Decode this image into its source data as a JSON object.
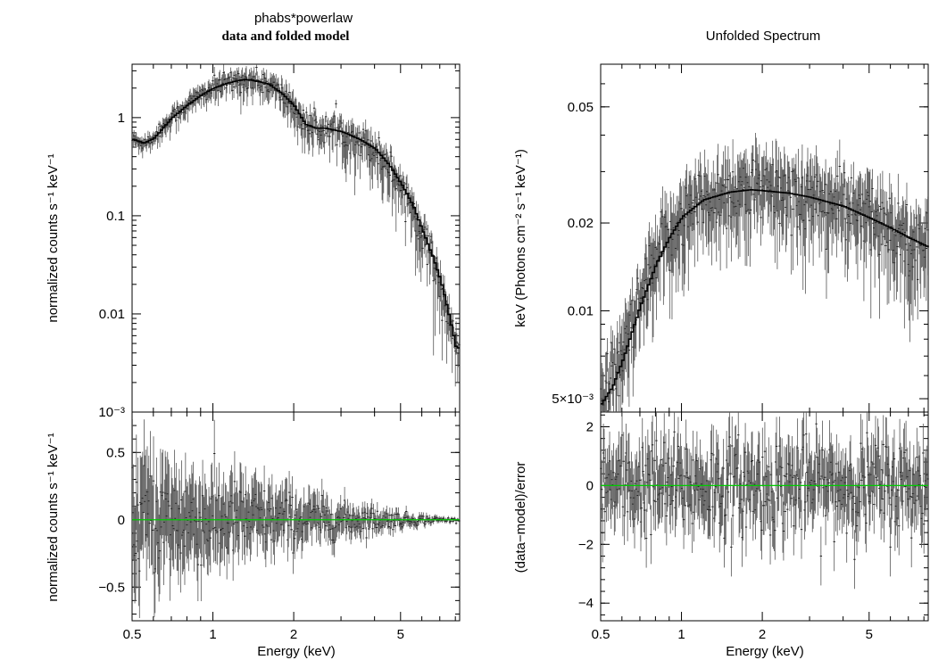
{
  "left": {
    "title_line1": "phabs*powerlaw",
    "title_line2": "data and folded model",
    "top_ylabel": "normalized counts s⁻¹ keV⁻¹",
    "bottom_ylabel": "normalized counts s⁻¹ keV⁻¹",
    "xlabel": "Energy (keV)"
  },
  "right": {
    "title": "Unfolded Spectrum",
    "top_ylabel": "keV (Photons cm⁻² s⁻¹ keV⁻¹)",
    "bottom_ylabel": "(data−model)/error",
    "xlabel": "Energy (keV)"
  },
  "colors": {
    "axis": "#000000",
    "data": "#555555",
    "model": "#000000",
    "zero_line": "#00cc00"
  },
  "chart_data": [
    {
      "type": "line",
      "panel": "left-top",
      "xscale": "log",
      "yscale": "log",
      "xlim": [
        0.5,
        8.3
      ],
      "ylim": [
        0.001,
        3.5
      ],
      "x_ticks": [
        0.5,
        1,
        2,
        5
      ],
      "x_tick_labels": [
        "0.5",
        "1",
        "2",
        "5"
      ],
      "y_ticks": [
        0.001,
        0.01,
        0.1,
        1
      ],
      "y_tick_labels": [
        "10⁻³",
        "0.01",
        "0.1",
        "1"
      ],
      "series": [
        {
          "x": [
            0.5,
            0.55,
            0.6,
            0.65,
            0.7,
            0.8,
            0.9,
            1.0,
            1.1,
            1.2,
            1.3,
            1.4,
            1.6,
            1.8,
            2.0,
            2.2,
            2.4,
            2.6,
            3.0,
            3.5,
            4.0,
            4.5,
            5.0,
            5.5,
            6.0,
            6.5,
            7.0,
            7.5,
            8.0,
            8.3
          ],
          "y": [
            0.6,
            0.55,
            0.62,
            0.8,
            1.0,
            1.35,
            1.7,
            2.0,
            2.2,
            2.35,
            2.45,
            2.4,
            2.2,
            1.75,
            1.3,
            0.85,
            0.78,
            0.78,
            0.72,
            0.6,
            0.48,
            0.33,
            0.21,
            0.13,
            0.07,
            0.04,
            0.022,
            0.01,
            0.0045,
            0.0045
          ]
        }
      ]
    },
    {
      "type": "scatter",
      "panel": "left-bottom",
      "xscale": "log",
      "yscale": "linear",
      "xlim": [
        0.5,
        8.3
      ],
      "ylim": [
        -0.75,
        0.8
      ],
      "x_ticks": [
        0.5,
        1,
        2,
        5
      ],
      "x_tick_labels": [
        "0.5",
        "1",
        "2",
        "5"
      ],
      "y_ticks": [
        -0.5,
        0,
        0.5
      ],
      "y_tick_labels": [
        "−0.5",
        "0",
        "0.5"
      ],
      "zero_line": 0
    },
    {
      "type": "line",
      "panel": "right-top",
      "xscale": "log",
      "yscale": "log",
      "xlim": [
        0.5,
        8.3
      ],
      "ylim": [
        0.0045,
        0.07
      ],
      "x_ticks": [
        0.5,
        1,
        2,
        5
      ],
      "x_tick_labels": [
        "0.5",
        "1",
        "2",
        "5"
      ],
      "y_ticks": [
        0.005,
        0.01,
        0.02,
        0.05
      ],
      "y_tick_labels": [
        "5×10⁻³",
        "0.01",
        "0.02",
        "0.05"
      ],
      "series": [
        {
          "x": [
            0.5,
            0.55,
            0.6,
            0.65,
            0.7,
            0.8,
            0.9,
            1.0,
            1.2,
            1.5,
            1.8,
            2.0,
            2.5,
            3.0,
            4.0,
            5.0,
            6.0,
            7.0,
            8.3
          ],
          "y": [
            0.0048,
            0.0055,
            0.0068,
            0.0085,
            0.0105,
            0.0145,
            0.018,
            0.021,
            0.024,
            0.0255,
            0.026,
            0.0258,
            0.0253,
            0.0245,
            0.0228,
            0.0208,
            0.0192,
            0.0178,
            0.0165
          ]
        }
      ]
    },
    {
      "type": "scatter",
      "panel": "right-bottom",
      "xscale": "log",
      "yscale": "linear",
      "xlim": [
        0.5,
        8.3
      ],
      "ylim": [
        -4.6,
        2.5
      ],
      "x_ticks": [
        0.5,
        1,
        2,
        5
      ],
      "x_tick_labels": [
        "0.5",
        "1",
        "2",
        "5"
      ],
      "y_ticks": [
        -4,
        -2,
        0,
        2
      ],
      "y_tick_labels": [
        "−4",
        "−2",
        "0",
        "2"
      ],
      "zero_line": 0
    }
  ]
}
